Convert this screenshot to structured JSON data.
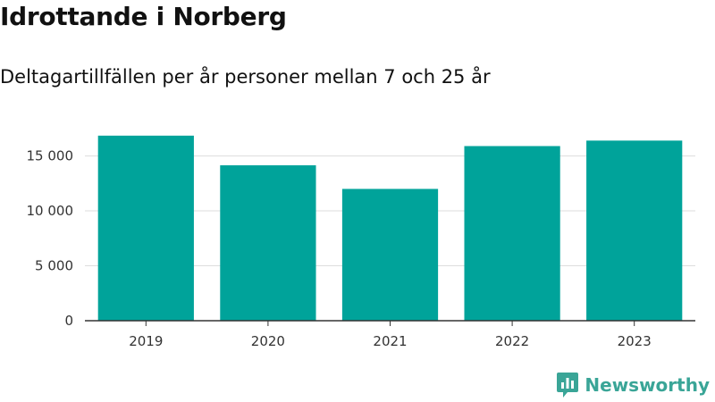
{
  "colors": {
    "bar": "#00a39a",
    "grid": "#dddddd",
    "axis": "#333333",
    "brand": "#3aa597"
  },
  "brand": {
    "name": "Newsworthy",
    "icon": "newsworthy-logo-icon"
  },
  "chart_data": {
    "type": "bar",
    "title": "Idrottande i Norberg",
    "subtitle": "Deltagartillfällen per år personer mellan 7 och 25 år",
    "categories": [
      "2019",
      "2020",
      "2021",
      "2022",
      "2023"
    ],
    "values": [
      16850,
      14150,
      12000,
      15900,
      16400
    ],
    "ylim": [
      0,
      17000
    ],
    "yticks": [
      0,
      5000,
      10000,
      15000
    ],
    "ytick_labels": [
      "0",
      "5 000",
      "10 000",
      "15 000"
    ],
    "grid": true,
    "xlabel": "",
    "ylabel": ""
  }
}
